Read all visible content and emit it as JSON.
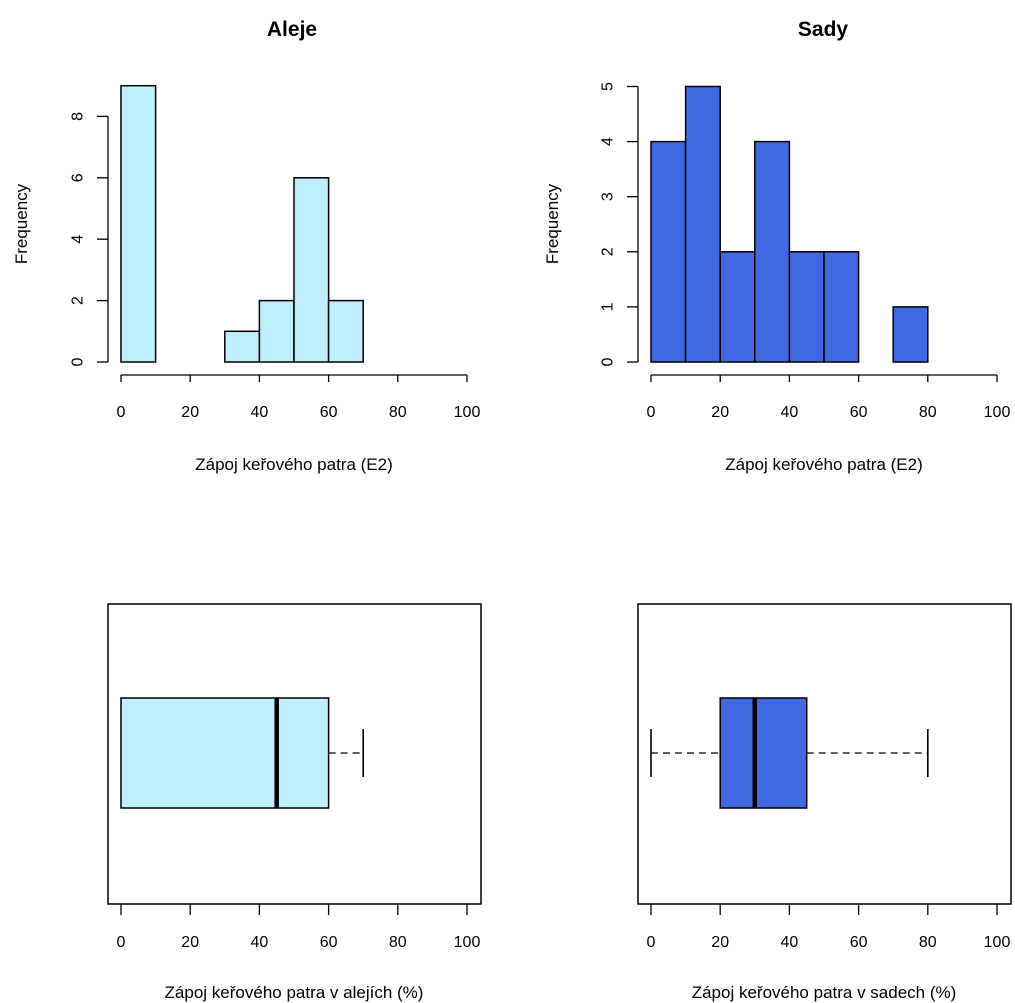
{
  "chart_data": [
    {
      "type": "histogram",
      "title": "Aleje",
      "xlabel": "Zápoj keřového patra (E2)",
      "ylabel": "Frequency",
      "xlim": [
        0,
        100
      ],
      "ylim": [
        0,
        9
      ],
      "xticks": [
        "0",
        "20",
        "40",
        "60",
        "80",
        "100"
      ],
      "yticks": [
        "0",
        "2",
        "4",
        "6",
        "8"
      ],
      "bins": [
        [
          0,
          10
        ],
        [
          10,
          20
        ],
        [
          20,
          30
        ],
        [
          30,
          40
        ],
        [
          40,
          50
        ],
        [
          50,
          60
        ],
        [
          60,
          70
        ]
      ],
      "values": [
        9,
        0,
        0,
        1,
        2,
        6,
        2
      ],
      "fill": "#bfefff",
      "grid": false
    },
    {
      "type": "histogram",
      "title": "Sady",
      "xlabel": "Zápoj keřového patra (E2)",
      "ylabel": "Frequency",
      "xlim": [
        0,
        100
      ],
      "ylim": [
        0,
        5
      ],
      "xticks": [
        "0",
        "20",
        "40",
        "60",
        "80",
        "100"
      ],
      "yticks": [
        "0",
        "1",
        "2",
        "3",
        "4",
        "5"
      ],
      "bins": [
        [
          0,
          10
        ],
        [
          10,
          20
        ],
        [
          20,
          30
        ],
        [
          30,
          40
        ],
        [
          40,
          50
        ],
        [
          50,
          60
        ],
        [
          60,
          70
        ],
        [
          70,
          80
        ]
      ],
      "values": [
        4,
        5,
        2,
        4,
        2,
        2,
        0,
        1
      ],
      "fill": "#4169e1",
      "grid": false
    },
    {
      "type": "boxplot",
      "orientation": "horizontal",
      "xlabel": "Zápoj keřového patra v alejích (%)",
      "xlim": [
        0,
        100
      ],
      "xticks": [
        "0",
        "20",
        "40",
        "60",
        "80",
        "100"
      ],
      "stats": {
        "min": 0,
        "q1": 0,
        "median": 45,
        "q3": 60,
        "max": 70
      },
      "fill": "#bfefff",
      "grid": false
    },
    {
      "type": "boxplot",
      "orientation": "horizontal",
      "xlabel": "Zápoj keřového patra v sadech (%)",
      "xlim": [
        0,
        100
      ],
      "xticks": [
        "0",
        "20",
        "40",
        "60",
        "80",
        "100"
      ],
      "stats": {
        "min": 0,
        "q1": 20,
        "median": 30,
        "q3": 45,
        "max": 80
      },
      "fill": "#4169e1",
      "grid": false
    }
  ]
}
